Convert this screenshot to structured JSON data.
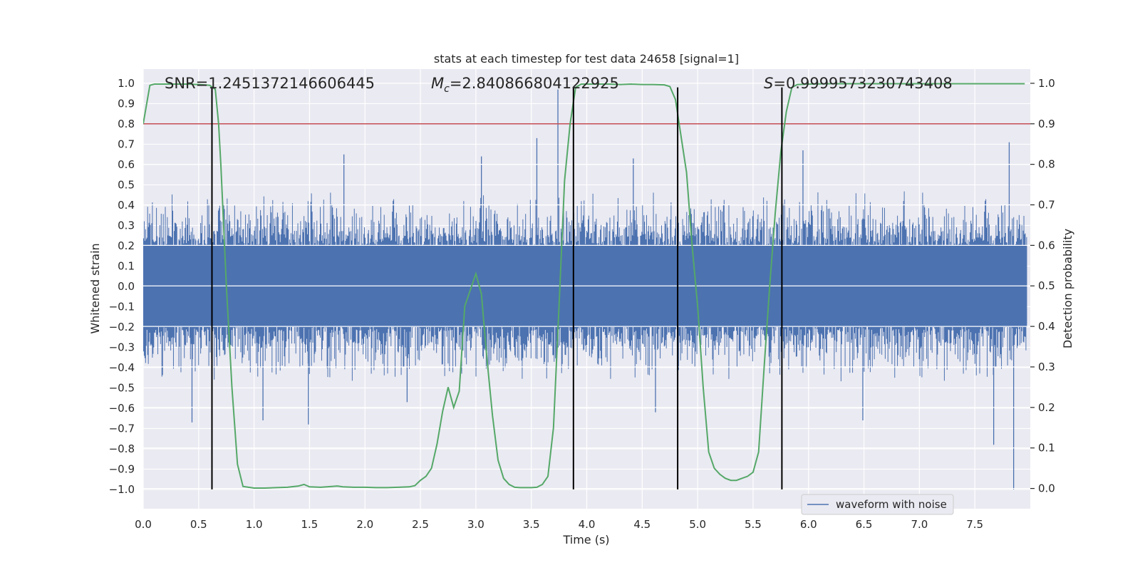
{
  "chart_data": {
    "type": "line",
    "title": "stats at each timestep for test data 24658 [signal=1]",
    "xlabel": "Time (s)",
    "ylabel": "Whitened strain",
    "y2label": "Detection probability",
    "xlim": [
      0.0,
      8.0
    ],
    "ylim": [
      -1.095,
      1.07
    ],
    "y2lim": [
      -0.05,
      1.035
    ],
    "x_ticks": [
      0.0,
      0.5,
      1.0,
      1.5,
      2.0,
      2.5,
      3.0,
      3.5,
      4.0,
      4.5,
      5.0,
      5.5,
      6.0,
      6.5,
      7.0,
      7.5
    ],
    "y_ticks": [
      -1.0,
      -0.9,
      -0.8,
      -0.7,
      -0.6,
      -0.5,
      -0.4,
      -0.3,
      -0.2,
      -0.1,
      0.0,
      0.1,
      0.2,
      0.3,
      0.4,
      0.5,
      0.6,
      0.7,
      0.8,
      0.9,
      1.0
    ],
    "y2_ticks": [
      0.0,
      0.1,
      0.2,
      0.3,
      0.4,
      0.5,
      0.6,
      0.7,
      0.8,
      0.9,
      1.0
    ],
    "x_tick_labels": [
      "0.0",
      "0.5",
      "1.0",
      "1.5",
      "2.0",
      "2.5",
      "3.0",
      "3.5",
      "4.0",
      "4.5",
      "5.0",
      "5.5",
      "6.0",
      "6.5",
      "7.0",
      "7.5"
    ],
    "y_tick_labels": [
      "−1.0",
      "−0.9",
      "−0.8",
      "−0.7",
      "−0.6",
      "−0.5",
      "−0.4",
      "−0.3",
      "−0.2",
      "−0.1",
      "0.0",
      "0.1",
      "0.2",
      "0.3",
      "0.4",
      "0.5",
      "0.6",
      "0.7",
      "0.8",
      "0.9",
      "1.0"
    ],
    "y2_tick_labels": [
      "0.0",
      "0.1",
      "0.2",
      "0.3",
      "0.4",
      "0.5",
      "0.6",
      "0.7",
      "0.8",
      "0.9",
      "1.0"
    ],
    "annotations": {
      "snr": "SNR=1.2451372146606445",
      "mc_symbol": "M",
      "mc_sub": "c",
      "mc_value": "=2.840866804122925",
      "s_symbol": "S",
      "s_value": "=0.9999573230743408"
    },
    "threshold": {
      "value": 0.9,
      "axis": "right",
      "color": "#c44e52"
    },
    "vertical_lines": {
      "x": [
        0.62,
        3.88,
        4.82,
        5.76
      ],
      "ymin": -1.0,
      "ymax": 0.98,
      "color": "#000000"
    },
    "series": [
      {
        "name": "waveform with noise",
        "color": "#4c72b0",
        "kind": "noisy-waveform",
        "core_amplitude": 0.2,
        "typical_range": [
          -0.47,
          0.47
        ],
        "spikes": [
          {
            "x": 0.44,
            "y": -0.67
          },
          {
            "x": 1.08,
            "y": -0.66
          },
          {
            "x": 1.49,
            "y": -0.68
          },
          {
            "x": 1.81,
            "y": 0.65
          },
          {
            "x": 2.38,
            "y": -0.57
          },
          {
            "x": 3.05,
            "y": 0.64
          },
          {
            "x": 3.55,
            "y": 0.73
          },
          {
            "x": 3.74,
            "y": 0.97
          },
          {
            "x": 4.42,
            "y": 0.63
          },
          {
            "x": 4.62,
            "y": -0.62
          },
          {
            "x": 5.95,
            "y": 0.67
          },
          {
            "x": 6.49,
            "y": -0.66
          },
          {
            "x": 7.67,
            "y": -0.78
          },
          {
            "x": 7.81,
            "y": 0.71
          },
          {
            "x": 7.85,
            "y": -1.0
          }
        ]
      },
      {
        "name": "detection probability",
        "color": "#55a868",
        "axis": "right",
        "x": [
          0.0,
          0.06,
          0.1,
          0.2,
          0.3,
          0.4,
          0.5,
          0.55,
          0.6,
          0.65,
          0.68,
          0.7,
          0.75,
          0.8,
          0.85,
          0.9,
          1.0,
          1.1,
          1.2,
          1.3,
          1.4,
          1.45,
          1.5,
          1.6,
          1.7,
          1.75,
          1.8,
          1.9,
          2.0,
          2.1,
          2.2,
          2.3,
          2.4,
          2.45,
          2.5,
          2.55,
          2.6,
          2.65,
          2.7,
          2.75,
          2.8,
          2.85,
          2.9,
          2.95,
          3.0,
          3.05,
          3.1,
          3.15,
          3.2,
          3.25,
          3.3,
          3.35,
          3.4,
          3.45,
          3.5,
          3.55,
          3.6,
          3.65,
          3.7,
          3.75,
          3.8,
          3.85,
          3.9,
          3.95,
          4.0,
          4.1,
          4.2,
          4.3,
          4.4,
          4.5,
          4.6,
          4.7,
          4.75,
          4.8,
          4.85,
          4.9,
          4.95,
          5.0,
          5.05,
          5.1,
          5.15,
          5.2,
          5.25,
          5.3,
          5.35,
          5.4,
          5.45,
          5.5,
          5.55,
          5.6,
          5.65,
          5.7,
          5.75,
          5.8,
          5.85,
          5.9,
          6.0,
          6.2,
          6.5,
          7.0,
          7.5,
          7.95
        ],
        "values": [
          0.9,
          0.995,
          0.998,
          0.998,
          0.998,
          0.998,
          0.997,
          0.996,
          0.995,
          0.985,
          0.9,
          0.8,
          0.5,
          0.25,
          0.06,
          0.005,
          0.001,
          0.001,
          0.002,
          0.003,
          0.006,
          0.01,
          0.004,
          0.003,
          0.005,
          0.006,
          0.004,
          0.003,
          0.003,
          0.002,
          0.002,
          0.003,
          0.004,
          0.007,
          0.02,
          0.03,
          0.05,
          0.11,
          0.19,
          0.25,
          0.2,
          0.24,
          0.45,
          0.49,
          0.53,
          0.48,
          0.32,
          0.18,
          0.07,
          0.025,
          0.01,
          0.003,
          0.002,
          0.002,
          0.002,
          0.003,
          0.01,
          0.03,
          0.15,
          0.45,
          0.76,
          0.9,
          0.99,
          0.998,
          0.998,
          0.998,
          0.998,
          0.997,
          0.998,
          0.997,
          0.997,
          0.996,
          0.992,
          0.96,
          0.87,
          0.78,
          0.6,
          0.45,
          0.25,
          0.09,
          0.05,
          0.035,
          0.025,
          0.02,
          0.02,
          0.025,
          0.03,
          0.04,
          0.09,
          0.3,
          0.5,
          0.68,
          0.83,
          0.93,
          0.99,
          0.997,
          0.998,
          0.999,
          0.999,
          0.999,
          0.999,
          0.999
        ]
      }
    ],
    "legend": {
      "entries": [
        "waveform with noise"
      ],
      "position": "lower-right"
    },
    "grid": true,
    "background": "#eaeaf2"
  }
}
